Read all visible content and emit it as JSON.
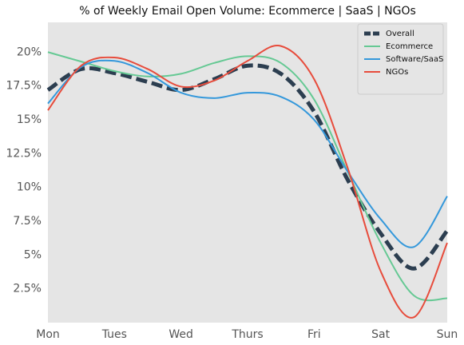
{
  "chart_data": {
    "type": "line",
    "title": "% of Weekly Email Open Volume: Ecommerce | SaaS | NGOs",
    "x": [
      0,
      0.5,
      1,
      1.5,
      2,
      2.5,
      3,
      3.5,
      4,
      4.5,
      5,
      5.5,
      6
    ],
    "series": [
      {
        "name": "Overall",
        "color": "#2c3e50",
        "dashed": true,
        "values": [
          17.2,
          18.75,
          18.45,
          17.8,
          17.2,
          18.0,
          19.0,
          18.4,
          15.6,
          10.6,
          6.6,
          4.0,
          6.8
        ]
      },
      {
        "name": "Ecommerce",
        "color": "#66c994",
        "values": [
          20.0,
          19.3,
          18.6,
          18.2,
          18.4,
          19.2,
          19.7,
          19.2,
          16.5,
          11.2,
          5.9,
          2.0,
          1.8
        ]
      },
      {
        "name": "Software/SaaS",
        "color": "#3498db",
        "values": [
          16.2,
          18.9,
          19.35,
          18.45,
          17.0,
          16.6,
          17.0,
          16.7,
          15.0,
          11.2,
          7.65,
          5.6,
          9.35
        ]
      },
      {
        "name": "NGOs",
        "color": "#e74c3c",
        "values": [
          15.7,
          19.0,
          19.6,
          18.75,
          17.45,
          17.9,
          19.35,
          20.45,
          18.0,
          11.5,
          3.8,
          0.4,
          5.9
        ]
      }
    ],
    "xlim": [
      0,
      6
    ],
    "xticks": [
      {
        "value": 0,
        "label": "Mon"
      },
      {
        "value": 1,
        "label": "Tues"
      },
      {
        "value": 2,
        "label": "Wed"
      },
      {
        "value": 3,
        "label": "Thurs"
      },
      {
        "value": 4,
        "label": "Fri"
      },
      {
        "value": 5,
        "label": "Sat"
      },
      {
        "value": 6,
        "label": "Sun"
      }
    ],
    "ylim": [
      0,
      22.2
    ],
    "yticks": [
      {
        "value": 2.5,
        "label": "2.5%"
      },
      {
        "value": 5,
        "label": "5%"
      },
      {
        "value": 7.5,
        "label": "7.5%"
      },
      {
        "value": 10,
        "label": "10%"
      },
      {
        "value": 12.5,
        "label": "12.5%"
      },
      {
        "value": 15,
        "label": "15%"
      },
      {
        "value": 17.5,
        "label": "17.5%"
      },
      {
        "value": 20,
        "label": "20%"
      }
    ],
    "grid": false,
    "legend": "upper right",
    "background": "#e5e5e5"
  }
}
